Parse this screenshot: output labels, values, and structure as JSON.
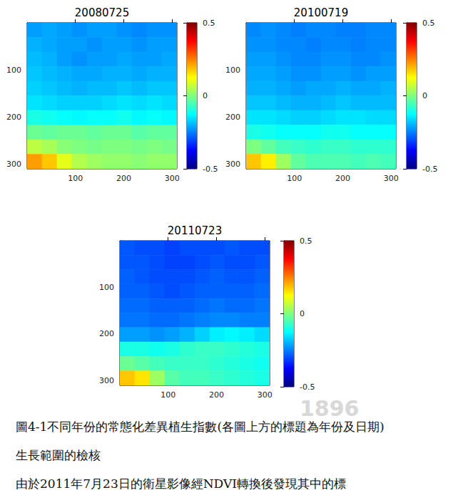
{
  "chart_data": [
    {
      "type": "heatmap",
      "title": "20080725",
      "xlim": [
        0,
        310
      ],
      "ylim": [
        0,
        310
      ],
      "xticks": [
        100,
        200,
        300
      ],
      "yticks": [
        100,
        200,
        300
      ],
      "x_edges": [
        0,
        31,
        62,
        93,
        124,
        155,
        186,
        217,
        248,
        279,
        310
      ],
      "y_edges": [
        0,
        31,
        62,
        93,
        124,
        155,
        186,
        217,
        248,
        279,
        310
      ],
      "cells": [
        [
          -0.22,
          -0.21,
          -0.22,
          -0.23,
          -0.22,
          -0.22,
          -0.23,
          -0.24,
          -0.23,
          -0.23
        ],
        [
          -0.2,
          -0.21,
          -0.22,
          -0.22,
          -0.23,
          -0.22,
          -0.22,
          -0.23,
          -0.22,
          -0.22
        ],
        [
          -0.19,
          -0.2,
          -0.22,
          -0.23,
          -0.22,
          -0.22,
          -0.21,
          -0.22,
          -0.22,
          -0.21
        ],
        [
          -0.18,
          -0.19,
          -0.2,
          -0.21,
          -0.21,
          -0.2,
          -0.2,
          -0.21,
          -0.2,
          -0.2
        ],
        [
          -0.17,
          -0.18,
          -0.19,
          -0.2,
          -0.19,
          -0.19,
          -0.18,
          -0.19,
          -0.18,
          -0.18
        ],
        [
          -0.15,
          -0.16,
          -0.17,
          -0.17,
          -0.17,
          -0.16,
          -0.15,
          -0.16,
          -0.15,
          -0.16
        ],
        [
          -0.1,
          -0.11,
          -0.12,
          -0.13,
          -0.12,
          -0.12,
          -0.11,
          -0.13,
          -0.12,
          -0.13
        ],
        [
          -0.02,
          -0.03,
          -0.02,
          -0.02,
          -0.03,
          -0.02,
          -0.02,
          -0.04,
          -0.03,
          -0.03
        ],
        [
          0.06,
          0.04,
          0.01,
          0,
          -0.01,
          0,
          0,
          -0.01,
          0,
          -0.01
        ],
        [
          0.22,
          0.18,
          0.1,
          0.05,
          0.03,
          0.02,
          0.02,
          0.01,
          0.02,
          0.02
        ]
      ],
      "colorbar_range": [
        -0.5,
        0.5
      ],
      "colorbar_ticks": [
        -0.5,
        0,
        0.5
      ]
    },
    {
      "type": "heatmap",
      "title": "20100719",
      "xlim": [
        0,
        310
      ],
      "ylim": [
        0,
        310
      ],
      "xticks": [
        100,
        200,
        300
      ],
      "yticks": [
        100,
        200,
        300
      ],
      "x_edges": [
        0,
        31,
        62,
        93,
        124,
        155,
        186,
        217,
        248,
        279,
        310
      ],
      "y_edges": [
        0,
        31,
        62,
        93,
        124,
        155,
        186,
        217,
        248,
        279,
        310
      ],
      "cells": [
        [
          -0.24,
          -0.23,
          -0.24,
          -0.25,
          -0.24,
          -0.24,
          -0.25,
          -0.25,
          -0.24,
          -0.24
        ],
        [
          -0.23,
          -0.23,
          -0.24,
          -0.24,
          -0.25,
          -0.24,
          -0.24,
          -0.25,
          -0.24,
          -0.24
        ],
        [
          -0.22,
          -0.22,
          -0.23,
          -0.24,
          -0.24,
          -0.23,
          -0.23,
          -0.24,
          -0.24,
          -0.23
        ],
        [
          -0.21,
          -0.21,
          -0.22,
          -0.23,
          -0.23,
          -0.22,
          -0.22,
          -0.23,
          -0.22,
          -0.22
        ],
        [
          -0.2,
          -0.2,
          -0.21,
          -0.22,
          -0.21,
          -0.21,
          -0.2,
          -0.21,
          -0.21,
          -0.2
        ],
        [
          -0.18,
          -0.18,
          -0.19,
          -0.2,
          -0.2,
          -0.19,
          -0.18,
          -0.19,
          -0.19,
          -0.19
        ],
        [
          -0.15,
          -0.15,
          -0.16,
          -0.17,
          -0.17,
          -0.16,
          -0.15,
          -0.15,
          -0.16,
          -0.16
        ],
        [
          -0.1,
          -0.11,
          -0.12,
          -0.12,
          -0.12,
          -0.11,
          -0.11,
          -0.12,
          -0.12,
          -0.12
        ],
        [
          0,
          -0.03,
          -0.06,
          -0.07,
          -0.08,
          -0.07,
          -0.07,
          -0.08,
          -0.08,
          -0.08
        ],
        [
          0.18,
          0.14,
          0.03,
          -0.03,
          -0.05,
          -0.05,
          -0.05,
          -0.06,
          -0.05,
          -0.06
        ]
      ],
      "colorbar_range": [
        -0.5,
        0.5
      ],
      "colorbar_ticks": [
        -0.5,
        0,
        0.5
      ]
    },
    {
      "type": "heatmap",
      "title": "20110723",
      "xlim": [
        0,
        310
      ],
      "ylim": [
        0,
        310
      ],
      "xticks": [
        100,
        200,
        300
      ],
      "yticks": [
        100,
        200,
        300
      ],
      "x_edges": [
        0,
        31,
        62,
        93,
        124,
        155,
        186,
        217,
        248,
        279,
        310
      ],
      "y_edges": [
        0,
        31,
        62,
        93,
        124,
        155,
        186,
        217,
        248,
        279,
        310
      ],
      "cells": [
        [
          -0.29,
          -0.3,
          -0.3,
          -0.31,
          -0.3,
          -0.3,
          -0.3,
          -0.29,
          -0.3,
          -0.3
        ],
        [
          -0.29,
          -0.29,
          -0.3,
          -0.31,
          -0.31,
          -0.3,
          -0.29,
          -0.3,
          -0.3,
          -0.29
        ],
        [
          -0.28,
          -0.29,
          -0.3,
          -0.3,
          -0.3,
          -0.29,
          -0.28,
          -0.29,
          -0.29,
          -0.28
        ],
        [
          -0.28,
          -0.28,
          -0.29,
          -0.3,
          -0.29,
          -0.28,
          -0.28,
          -0.28,
          -0.28,
          -0.27
        ],
        [
          -0.27,
          -0.27,
          -0.28,
          -0.28,
          -0.28,
          -0.27,
          -0.26,
          -0.27,
          -0.27,
          -0.26
        ],
        [
          -0.26,
          -0.26,
          -0.27,
          -0.27,
          -0.26,
          -0.25,
          -0.24,
          -0.24,
          -0.25,
          -0.25
        ],
        [
          -0.22,
          -0.22,
          -0.23,
          -0.22,
          -0.2,
          -0.17,
          -0.14,
          -0.13,
          -0.14,
          -0.16
        ],
        [
          -0.1,
          -0.1,
          -0.11,
          -0.1,
          -0.08,
          -0.07,
          -0.07,
          -0.08,
          -0.09,
          -0.1
        ],
        [
          -0.02,
          -0.04,
          -0.06,
          -0.07,
          -0.07,
          -0.07,
          -0.08,
          -0.09,
          -0.1,
          -0.11
        ],
        [
          0.18,
          0.15,
          0.03,
          -0.04,
          -0.06,
          -0.06,
          -0.07,
          -0.08,
          -0.09,
          -0.1
        ]
      ],
      "colorbar_range": [
        -0.5,
        0.5
      ],
      "colorbar_ticks": [
        -0.5,
        0,
        0.5
      ]
    }
  ],
  "watermark": "1896",
  "caption": "圖4-1不同年份的常態化差異植生指數(各圖上方的標題為年份及日期)",
  "heading": "生長範圍的檢核",
  "body": "由於2011年7月23日的衛星影像經NDVI轉換後發現其中的標"
}
